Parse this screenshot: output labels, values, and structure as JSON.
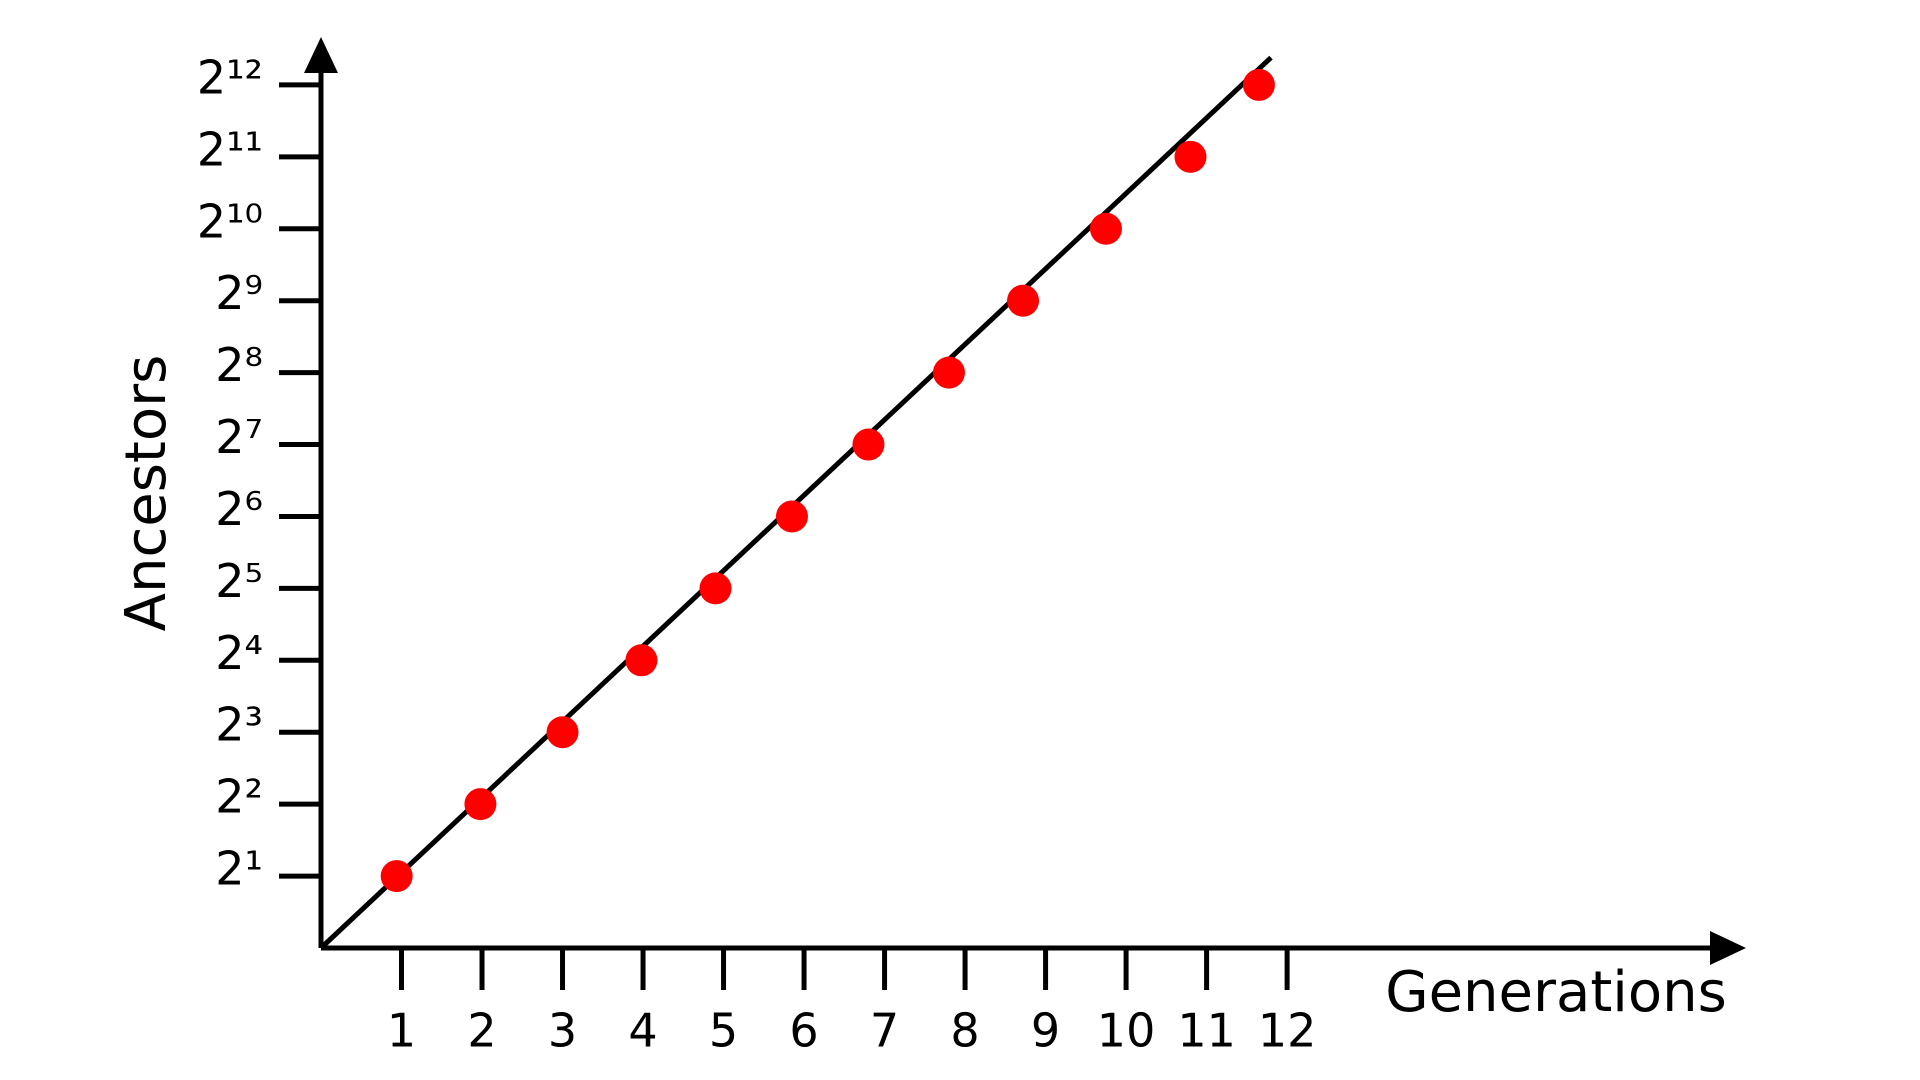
{
  "chart_data": {
    "type": "scatter",
    "xlabel": "Generations",
    "ylabel": "Ancestors",
    "yscale": "log2",
    "xlim": [
      0,
      17.7
    ],
    "ylim": [
      1,
      6500
    ],
    "xticks": [
      1,
      2,
      3,
      4,
      5,
      6,
      7,
      8,
      9,
      10,
      11,
      12
    ],
    "yticks": [
      {
        "value": 2,
        "label": "2¹"
      },
      {
        "value": 4,
        "label": "2²"
      },
      {
        "value": 8,
        "label": "2³"
      },
      {
        "value": 16,
        "label": "2⁴"
      },
      {
        "value": 32,
        "label": "2⁵"
      },
      {
        "value": 64,
        "label": "2⁶"
      },
      {
        "value": 128,
        "label": "2⁷"
      },
      {
        "value": 256,
        "label": "2⁸"
      },
      {
        "value": 512,
        "label": "2⁹"
      },
      {
        "value": 1024,
        "label": "2¹⁰"
      },
      {
        "value": 2048,
        "label": "2¹¹"
      },
      {
        "value": 4096,
        "label": "2¹²"
      }
    ],
    "series": [
      {
        "type": "scatter",
        "color": "#ff0000",
        "x": [
          0.94,
          1.98,
          3,
          3.98,
          4.9,
          5.85,
          6.8,
          7.8,
          8.72,
          9.75,
          10.8,
          11.65
        ],
        "values": [
          2,
          4,
          8,
          16,
          32,
          64,
          128,
          256,
          512,
          1024,
          2048,
          4096
        ]
      },
      {
        "type": "line",
        "color": "#000000",
        "x": [
          0,
          11.8
        ],
        "values": [
          1,
          5330
        ]
      }
    ]
  }
}
